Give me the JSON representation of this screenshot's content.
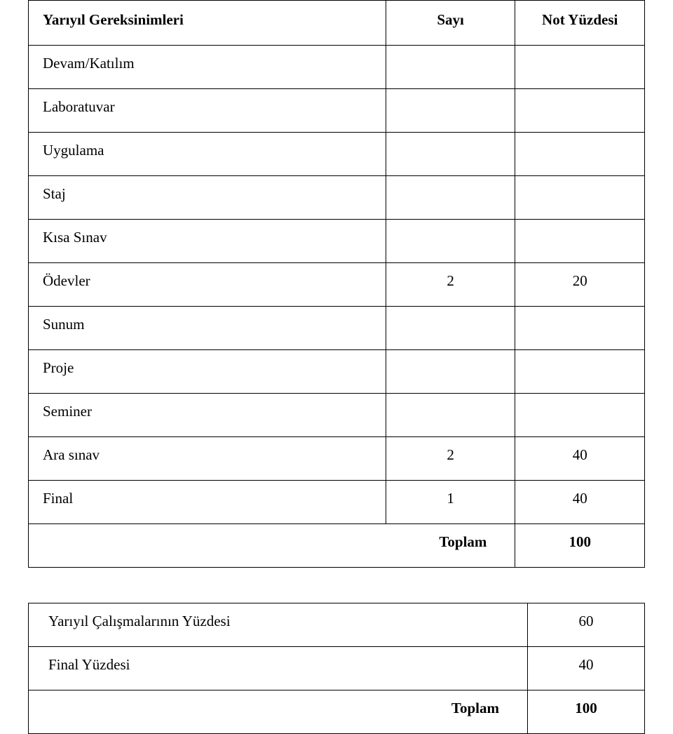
{
  "table1": {
    "headers": {
      "h1": "Yarıyıl Gereksinimleri",
      "h2": "Sayı",
      "h3": "Not Yüzdesi"
    },
    "rows": [
      {
        "label": "Devam/Katılım",
        "count": "",
        "percent": ""
      },
      {
        "label": "Laboratuvar",
        "count": "",
        "percent": ""
      },
      {
        "label": "Uygulama",
        "count": "",
        "percent": ""
      },
      {
        "label": "Staj",
        "count": "",
        "percent": ""
      },
      {
        "label": "Kısa Sınav",
        "count": "",
        "percent": ""
      },
      {
        "label": "Ödevler",
        "count": "2",
        "percent": "20"
      },
      {
        "label": "Sunum",
        "count": "",
        "percent": ""
      },
      {
        "label": "Proje",
        "count": "",
        "percent": ""
      },
      {
        "label": "Seminer",
        "count": "",
        "percent": ""
      },
      {
        "label": "Ara sınav",
        "count": "2",
        "percent": "40"
      },
      {
        "label": "Final",
        "count": "1",
        "percent": "40"
      }
    ],
    "total": {
      "label": "Toplam",
      "value": "100"
    }
  },
  "table2": {
    "rows": [
      {
        "label": "Yarıyıl Çalışmalarının Yüzdesi",
        "value": "60"
      },
      {
        "label": "Final Yüzdesi",
        "value": "40"
      }
    ],
    "total": {
      "label": "Toplam",
      "value": "100"
    }
  }
}
